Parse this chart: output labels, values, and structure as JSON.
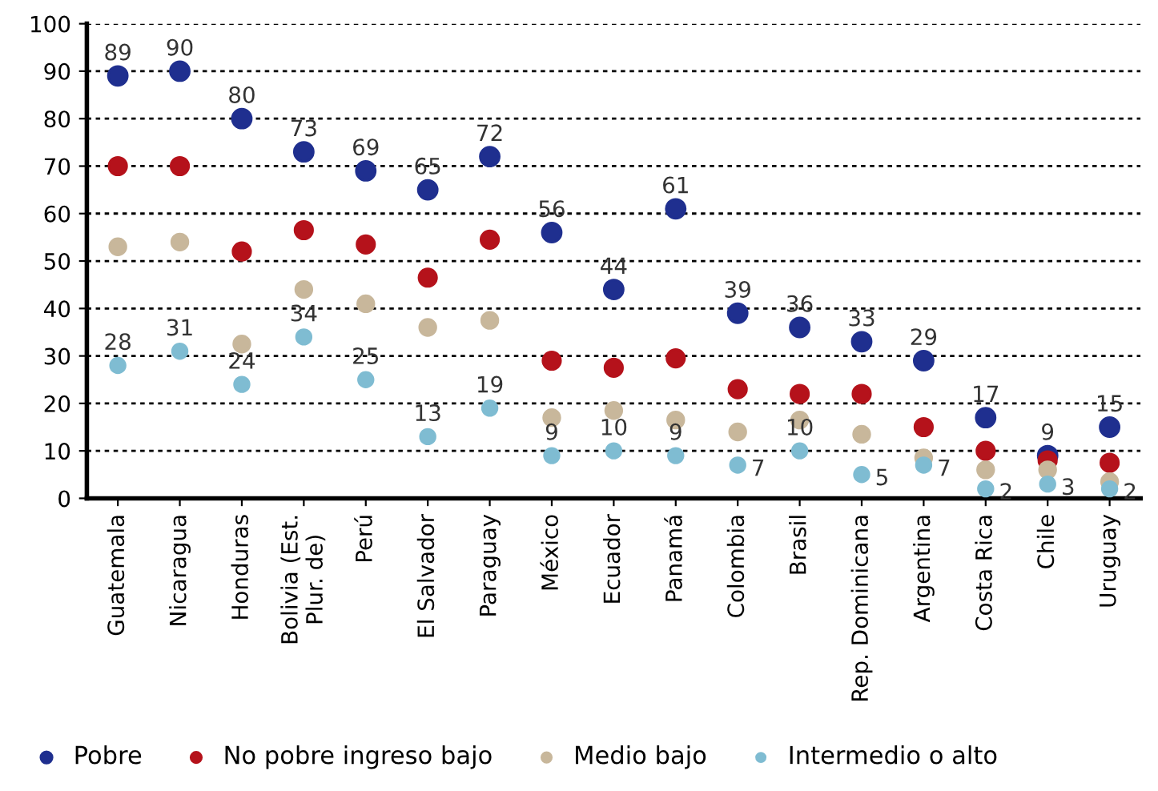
{
  "chart_data": {
    "type": "scatter",
    "categories": [
      "Guatemala",
      "Nicaragua",
      "Honduras",
      "Bolivia (Est.\nPlur. de)",
      "Perú",
      "El Salvador",
      "Paraguay",
      "México",
      "Ecuador",
      "Panamá",
      "Colombia",
      "Brasil",
      "Rep. Dominicana",
      "Argentina",
      "Costa Rica",
      "Chile",
      "Uruguay"
    ],
    "series": [
      {
        "name": "Pobre",
        "color": "#1f2f8f",
        "values": [
          89,
          90,
          80,
          73,
          69,
          65,
          72,
          56,
          44,
          61,
          39,
          36,
          33,
          29,
          17,
          9,
          15
        ],
        "value_labels": [
          "89",
          "90",
          "80",
          "73",
          "69",
          "65",
          "72",
          "56",
          "44",
          "61",
          "39",
          "36",
          "33",
          "29",
          "17",
          "9",
          "15"
        ]
      },
      {
        "name": "No pobre ingreso bajo",
        "color": "#b5121b",
        "values": [
          70,
          70,
          52,
          56.5,
          53.5,
          46.5,
          54.5,
          29,
          27.5,
          29.5,
          23,
          22,
          22,
          15,
          10,
          8,
          7.5
        ]
      },
      {
        "name": "Medio bajo",
        "color": "#c8b79b",
        "values": [
          53,
          54,
          32.5,
          44,
          41,
          36,
          37.5,
          17,
          18.5,
          16.5,
          14,
          16.5,
          13.5,
          8.5,
          6,
          6,
          3.5
        ]
      },
      {
        "name": "Intermedio o alto",
        "color": "#7fbcd2",
        "values": [
          28,
          31,
          24,
          34,
          25,
          13,
          19,
          9,
          10,
          9,
          7,
          10,
          5,
          7,
          2,
          3,
          2
        ],
        "value_labels": [
          "28",
          "31",
          "24",
          "34",
          "25",
          "13",
          "19",
          "9",
          "10",
          "9",
          "7",
          "10",
          "5",
          "7",
          "2",
          "3",
          "2"
        ]
      }
    ],
    "ylim": [
      0,
      100
    ],
    "yticks": [
      0,
      10,
      20,
      30,
      40,
      50,
      60,
      70,
      80,
      90,
      100
    ],
    "grid": "y",
    "legend": "bottom",
    "marker": "circle"
  }
}
